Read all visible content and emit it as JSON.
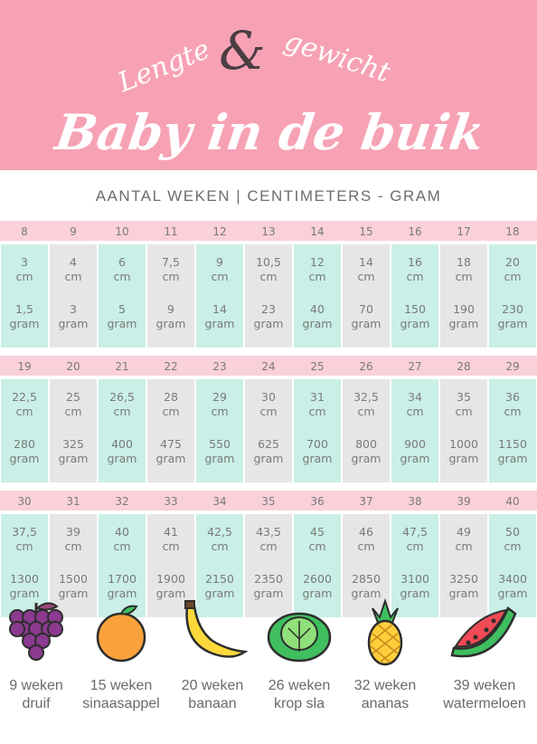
{
  "header": {
    "script_line_left": "Lengte",
    "script_ampersand": "&",
    "script_line_right": "gewicht",
    "title": "Baby in de buik"
  },
  "subtitle": "AANTAL WEKEN  |  CENTIMETERS - GRAM",
  "rows": [
    {
      "weeks": [
        "8",
        "9",
        "10",
        "11",
        "12",
        "13",
        "14",
        "15",
        "16",
        "17",
        "18"
      ],
      "cm": [
        [
          "3",
          "cm"
        ],
        [
          "4",
          "cm"
        ],
        [
          "6",
          "cm"
        ],
        [
          "7,5",
          "cm"
        ],
        [
          "9",
          "cm"
        ],
        [
          "10,5",
          "cm"
        ],
        [
          "12",
          "cm"
        ],
        [
          "14",
          "cm"
        ],
        [
          "16",
          "cm"
        ],
        [
          "18",
          "cm"
        ],
        [
          "20",
          "cm"
        ]
      ],
      "gram": [
        [
          "1,5",
          "gram"
        ],
        [
          "3",
          "gram"
        ],
        [
          "5",
          "gram"
        ],
        [
          "9",
          "gram"
        ],
        [
          "14",
          "gram"
        ],
        [
          "23",
          "gram"
        ],
        [
          "40",
          "gram"
        ],
        [
          "70",
          "gram"
        ],
        [
          "150",
          "gram"
        ],
        [
          "190",
          "gram"
        ],
        [
          "230",
          "gram"
        ]
      ]
    },
    {
      "weeks": [
        "19",
        "20",
        "21",
        "22",
        "23",
        "24",
        "25",
        "26",
        "27",
        "28",
        "29"
      ],
      "cm": [
        [
          "22,5",
          "cm"
        ],
        [
          "25",
          "cm"
        ],
        [
          "26,5",
          "cm"
        ],
        [
          "28",
          "cm"
        ],
        [
          "29",
          "cm"
        ],
        [
          "30",
          "cm"
        ],
        [
          "31",
          "cm"
        ],
        [
          "32,5",
          "cm"
        ],
        [
          "34",
          "cm"
        ],
        [
          "35",
          "cm"
        ],
        [
          "36",
          "cm"
        ]
      ],
      "gram": [
        [
          "280",
          "gram"
        ],
        [
          "325",
          "gram"
        ],
        [
          "400",
          "gram"
        ],
        [
          "475",
          "gram"
        ],
        [
          "550",
          "gram"
        ],
        [
          "625",
          "gram"
        ],
        [
          "700",
          "gram"
        ],
        [
          "800",
          "gram"
        ],
        [
          "900",
          "gram"
        ],
        [
          "1000",
          "gram"
        ],
        [
          "1150",
          "gram"
        ]
      ]
    },
    {
      "weeks": [
        "30",
        "31",
        "32",
        "33",
        "34",
        "35",
        "36",
        "37",
        "38",
        "39",
        "40"
      ],
      "cm": [
        [
          "37,5",
          "cm"
        ],
        [
          "39",
          "cm"
        ],
        [
          "40",
          "cm"
        ],
        [
          "41",
          "cm"
        ],
        [
          "42,5",
          "cm"
        ],
        [
          "43,5",
          "cm"
        ],
        [
          "45",
          "cm"
        ],
        [
          "46",
          "cm"
        ],
        [
          "47,5",
          "cm"
        ],
        [
          "49",
          "cm"
        ],
        [
          "50",
          "cm"
        ]
      ],
      "gram": [
        [
          "1300",
          "gram"
        ],
        [
          "1500",
          "gram"
        ],
        [
          "1700",
          "gram"
        ],
        [
          "1900",
          "gram"
        ],
        [
          "2150",
          "gram"
        ],
        [
          "2350",
          "gram"
        ],
        [
          "2600",
          "gram"
        ],
        [
          "2850",
          "gram"
        ],
        [
          "3100",
          "gram"
        ],
        [
          "3250",
          "gram"
        ],
        [
          "3400",
          "gram"
        ]
      ]
    }
  ],
  "fruits": [
    {
      "weeks": "9 weken",
      "name": "druif",
      "icon": "grape-icon"
    },
    {
      "weeks": "15 weken",
      "name": "sinaasappel",
      "icon": "orange-icon"
    },
    {
      "weeks": "20 weken",
      "name": "banaan",
      "icon": "banana-icon"
    },
    {
      "weeks": "26 weken",
      "name": "krop sla",
      "icon": "lettuce-icon"
    },
    {
      "weeks": "32 weken",
      "name": "ananas",
      "icon": "pineapple-icon"
    },
    {
      "weeks": "39 weken",
      "name": "watermeloen",
      "icon": "watermelon-icon"
    }
  ],
  "colors": {
    "header_bg": "#f7a2b4",
    "week_bar": "#fad0da",
    "mint_column": "#c9efe6",
    "grey_column": "#e6e6e6",
    "text": "#7a7a7a"
  }
}
